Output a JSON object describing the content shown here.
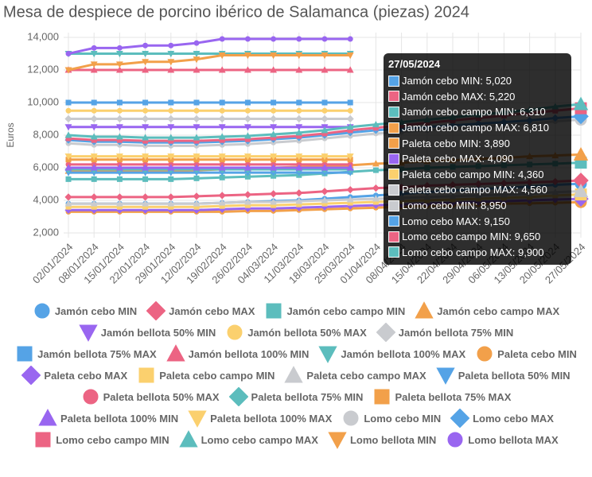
{
  "chart_data": {
    "type": "line",
    "title": "Mesa de despiece de porcino ibérico de Salamanca (piezas) 2024",
    "y_label": "Euros",
    "categories": [
      "02/01/2024",
      "08/01/2024",
      "15/01/2024",
      "22/01/2024",
      "29/01/2024",
      "12/02/2024",
      "19/02/2024",
      "26/02/2024",
      "04/03/2024",
      "11/03/2024",
      "18/03/2024",
      "25/03/2024",
      "01/04/2024",
      "08/04/2024",
      "15/04/2024",
      "22/04/2024",
      "29/04/2024",
      "06/05/2024",
      "13/05/2024",
      "20/05/2024",
      "27/05/2024"
    ],
    "ylim": [
      2000,
      14000
    ],
    "yticks": [
      {
        "value": 2000,
        "label": "2,000"
      },
      {
        "value": 4000,
        "label": "4,000"
      },
      {
        "value": 6000,
        "label": "6,000"
      },
      {
        "value": 8000,
        "label": "8,000"
      },
      {
        "value": 10000,
        "label": "10,000"
      },
      {
        "value": 12000,
        "label": "12,000"
      },
      {
        "value": 14000,
        "label": "14,000"
      }
    ],
    "grid": true,
    "series": [
      {
        "name": "Jamón cebo MIN",
        "color": "#55a3e6",
        "marker": "circle",
        "values": [
          3800,
          3800,
          3800,
          3800,
          3800,
          3800,
          3850,
          3900,
          3950,
          4000,
          4100,
          4200,
          4300,
          4400,
          4500,
          4600,
          4700,
          4750,
          4850,
          4950,
          5020
        ]
      },
      {
        "name": "Jamón cebo MAX",
        "color": "#ec6483",
        "marker": "diamond",
        "values": [
          4200,
          4200,
          4200,
          4200,
          4200,
          4250,
          4300,
          4350,
          4400,
          4450,
          4550,
          4650,
          4750,
          4800,
          4900,
          4950,
          5000,
          5050,
          5100,
          5150,
          5220
        ]
      },
      {
        "name": "Jamón cebo campo MIN",
        "color": "#5cbdbd",
        "marker": "square",
        "values": [
          5300,
          5300,
          5300,
          5300,
          5300,
          5350,
          5400,
          5450,
          5500,
          5550,
          5650,
          5750,
          5850,
          5900,
          6000,
          6050,
          6100,
          6150,
          6200,
          6250,
          6310
        ]
      },
      {
        "name": "Jamón cebo campo MAX",
        "color": "#f2a04a",
        "marker": "triangle",
        "values": [
          5800,
          5800,
          5800,
          5800,
          5800,
          5850,
          5900,
          5950,
          6000,
          6050,
          6100,
          6150,
          6250,
          6300,
          6400,
          6450,
          6550,
          6600,
          6700,
          6750,
          6810
        ]
      },
      {
        "name": "Jamón bellota 50% MIN",
        "color": "#9966f0",
        "marker": "triangle-down",
        "values": [
          8500,
          8500,
          8500,
          8500,
          8500,
          8500,
          8500,
          8500,
          8500,
          8500,
          8500,
          8500,
          null,
          null,
          null,
          null,
          null,
          null,
          null,
          null,
          null
        ]
      },
      {
        "name": "Jamón bellota 50% MAX",
        "color": "#fbd06e",
        "marker": "circle",
        "values": [
          9500,
          9500,
          9500,
          9500,
          9500,
          9500,
          9500,
          9500,
          9500,
          9500,
          9500,
          9500,
          null,
          null,
          null,
          null,
          null,
          null,
          null,
          null,
          null
        ]
      },
      {
        "name": "Jamón bellota 75% MIN",
        "color": "#c9cbcf",
        "marker": "diamond",
        "values": [
          9000,
          9000,
          9000,
          9000,
          9000,
          9000,
          9000,
          9000,
          9000,
          9000,
          9000,
          9000,
          null,
          null,
          null,
          null,
          null,
          null,
          null,
          null,
          null
        ]
      },
      {
        "name": "Jamón bellota 75% MAX",
        "color": "#55a3e6",
        "marker": "square",
        "values": [
          10000,
          10000,
          10000,
          10000,
          10000,
          10000,
          10000,
          10000,
          10000,
          10000,
          10000,
          10000,
          null,
          null,
          null,
          null,
          null,
          null,
          null,
          null,
          null
        ]
      },
      {
        "name": "Jamón bellota 100% MIN",
        "color": "#ec6483",
        "marker": "triangle",
        "values": [
          12000,
          12000,
          12000,
          12000,
          12000,
          12000,
          12000,
          12000,
          12000,
          12000,
          12000,
          12000,
          null,
          null,
          null,
          null,
          null,
          null,
          null,
          null,
          null
        ]
      },
      {
        "name": "Jamón bellota 100% MAX",
        "color": "#5cbdbd",
        "marker": "triangle-down",
        "values": [
          13000,
          13000,
          13000,
          13000,
          13000,
          13000,
          13000,
          13000,
          13000,
          13000,
          13000,
          13000,
          null,
          null,
          null,
          null,
          null,
          null,
          null,
          null,
          null
        ]
      },
      {
        "name": "Paleta cebo MIN",
        "color": "#f2a04a",
        "marker": "circle",
        "values": [
          3300,
          3300,
          3300,
          3300,
          3300,
          3300,
          3300,
          3350,
          3350,
          3400,
          3450,
          3500,
          3550,
          3600,
          3650,
          3700,
          3750,
          3800,
          3820,
          3850,
          3890
        ]
      },
      {
        "name": "Paleta cebo MAX",
        "color": "#9966f0",
        "marker": "diamond",
        "values": [
          3400,
          3400,
          3400,
          3400,
          3400,
          3400,
          3450,
          3500,
          3500,
          3550,
          3600,
          3650,
          3700,
          3750,
          3800,
          3850,
          3900,
          3950,
          4000,
          4050,
          4090
        ]
      },
      {
        "name": "Paleta cebo campo MIN",
        "color": "#fbd06e",
        "marker": "square",
        "values": [
          3600,
          3600,
          3600,
          3600,
          3600,
          3600,
          3650,
          3700,
          3700,
          3750,
          3800,
          3850,
          3900,
          3950,
          4000,
          4050,
          4100,
          4150,
          4200,
          4300,
          4360
        ]
      },
      {
        "name": "Paleta cebo campo MAX",
        "color": "#c9cbcf",
        "marker": "triangle",
        "values": [
          3800,
          3800,
          3800,
          3800,
          3800,
          3800,
          3850,
          3900,
          3900,
          3950,
          4000,
          4050,
          4100,
          4150,
          4200,
          4250,
          4300,
          4350,
          4400,
          4500,
          4560
        ]
      },
      {
        "name": "Paleta bellota 50% MIN",
        "color": "#55a3e6",
        "marker": "triangle-down",
        "values": [
          5700,
          5700,
          5700,
          5700,
          5700,
          5700,
          5700,
          5700,
          5700,
          5700,
          5700,
          5700,
          null,
          null,
          null,
          null,
          null,
          null,
          null,
          null,
          null
        ]
      },
      {
        "name": "Paleta bellota 50% MAX",
        "color": "#ec6483",
        "marker": "circle",
        "values": [
          6200,
          6200,
          6200,
          6200,
          6200,
          6200,
          6200,
          6200,
          6200,
          6200,
          6200,
          6200,
          null,
          null,
          null,
          null,
          null,
          null,
          null,
          null,
          null
        ]
      },
      {
        "name": "Paleta bellota 75% MIN",
        "color": "#5cbdbd",
        "marker": "diamond",
        "values": [
          5900,
          5900,
          5900,
          5900,
          5900,
          5900,
          5900,
          5900,
          5900,
          5900,
          5900,
          5900,
          null,
          null,
          null,
          null,
          null,
          null,
          null,
          null,
          null
        ]
      },
      {
        "name": "Paleta bellota 75% MAX",
        "color": "#f2a04a",
        "marker": "square",
        "values": [
          6500,
          6500,
          6500,
          6500,
          6500,
          6500,
          6500,
          6500,
          6500,
          6500,
          6500,
          6500,
          null,
          null,
          null,
          null,
          null,
          null,
          null,
          null,
          null
        ]
      },
      {
        "name": "Paleta bellota 100% MIN",
        "color": "#9966f0",
        "marker": "triangle",
        "values": [
          6000,
          6000,
          6000,
          6000,
          6000,
          6000,
          6000,
          6000,
          6000,
          6000,
          6000,
          6000,
          null,
          null,
          null,
          null,
          null,
          null,
          null,
          null,
          null
        ]
      },
      {
        "name": "Paleta bellota 100% MAX",
        "color": "#fbd06e",
        "marker": "triangle-down",
        "values": [
          6700,
          6700,
          6700,
          6700,
          6700,
          6700,
          6700,
          6700,
          6700,
          6700,
          6700,
          6700,
          null,
          null,
          null,
          null,
          null,
          null,
          null,
          null,
          null
        ]
      },
      {
        "name": "Lomo cebo MIN",
        "color": "#c9cbcf",
        "marker": "circle",
        "values": [
          7500,
          7400,
          7400,
          7350,
          7350,
          7350,
          7400,
          7450,
          7550,
          7650,
          7800,
          7950,
          8100,
          8200,
          8300,
          8400,
          8500,
          8600,
          8700,
          8850,
          8950
        ]
      },
      {
        "name": "Lomo cebo MAX",
        "color": "#55a3e6",
        "marker": "diamond",
        "values": [
          7700,
          7600,
          7600,
          7550,
          7550,
          7550,
          7600,
          7650,
          7750,
          7850,
          8000,
          8150,
          8300,
          8400,
          8500,
          8600,
          8700,
          8800,
          8900,
          9050,
          9150
        ]
      },
      {
        "name": "Lomo cebo campo MIN",
        "color": "#ec6483",
        "marker": "square",
        "values": [
          7800,
          7700,
          7700,
          7650,
          7650,
          7650,
          7700,
          7750,
          7850,
          7950,
          8100,
          8300,
          8450,
          8600,
          8750,
          8900,
          9050,
          9200,
          9350,
          9500,
          9650
        ]
      },
      {
        "name": "Lomo cebo campo MAX",
        "color": "#5cbdbd",
        "marker": "triangle",
        "values": [
          8000,
          7900,
          7900,
          7850,
          7850,
          7850,
          7900,
          7950,
          8050,
          8150,
          8300,
          8500,
          8650,
          8800,
          8950,
          9100,
          9250,
          9400,
          9550,
          9750,
          9900
        ]
      },
      {
        "name": "Lomo bellota MIN",
        "color": "#f2a04a",
        "marker": "triangle-down",
        "values": [
          12000,
          12350,
          12350,
          12500,
          12500,
          12650,
          12900,
          12900,
          12900,
          12900,
          12900,
          12900,
          null,
          null,
          null,
          null,
          null,
          null,
          null,
          null,
          null
        ]
      },
      {
        "name": "Lomo bellota MAX",
        "color": "#9966f0",
        "marker": "circle",
        "values": [
          13000,
          13350,
          13350,
          13500,
          13500,
          13650,
          13900,
          13900,
          13900,
          13900,
          13900,
          13900,
          null,
          null,
          null,
          null,
          null,
          null,
          null,
          null,
          null
        ]
      }
    ],
    "tooltip": {
      "items": [
        {
          "name": "Jamón cebo MIN",
          "label": "5,020"
        },
        {
          "name": "Jamón cebo MAX",
          "label": "5,220"
        },
        {
          "name": "Jamón cebo campo MIN",
          "label": "6,310"
        },
        {
          "name": "Jamón cebo campo MAX",
          "label": "6,810"
        },
        {
          "name": "Paleta cebo MIN",
          "label": "3,890"
        },
        {
          "name": "Paleta cebo MAX",
          "label": "4,090"
        },
        {
          "name": "Paleta cebo campo MIN",
          "label": "4,360"
        },
        {
          "name": "Paleta cebo campo MAX",
          "label": "4,560"
        },
        {
          "name": "Lomo cebo MIN",
          "label": "8,950"
        },
        {
          "name": "Lomo cebo MAX",
          "label": "9,150"
        },
        {
          "name": "Lomo cebo campo MIN",
          "label": "9,650"
        },
        {
          "name": "Lomo cebo campo MAX",
          "label": "9,900"
        }
      ]
    }
  }
}
